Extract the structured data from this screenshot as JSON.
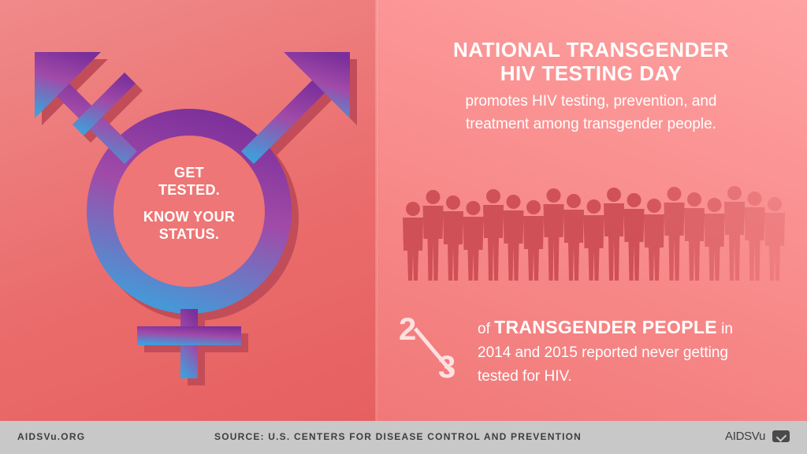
{
  "colors": {
    "left_bg": "#ea6b6b",
    "right_bg": "#f88a8a",
    "footer_bg": "#c8c8c8",
    "symbol_top": "#8a3fa8",
    "symbol_bottom": "#4aa0d8"
  },
  "symbol": {
    "icon": "transgender-symbol-icon",
    "line1": "GET",
    "line2": "TESTED.",
    "line3": "KNOW YOUR",
    "line4": "STATUS."
  },
  "heading": {
    "title_line1": "NATIONAL TRANSGENDER",
    "title_line2": "HIV TESTING DAY",
    "subtitle_line1": "promotes HIV testing, prevention, and",
    "subtitle_line2": "treatment among transgender people."
  },
  "illustration": {
    "icon": "crowd-silhouette-icon"
  },
  "stat": {
    "numerator": "2",
    "denominator": "3",
    "prefix": "of",
    "highlight": "TRANSGENDER PEOPLE",
    "suffix": "in",
    "line2": "2014 and 2015 reported never getting",
    "line3": "tested for HIV."
  },
  "footer": {
    "site": "AIDSVu.ORG",
    "source": "SOURCE: U.S. CENTERS FOR DISEASE CONTROL AND PREVENTION",
    "brand": "AIDSVu",
    "brand_icon": "aidsvu-check-icon"
  }
}
